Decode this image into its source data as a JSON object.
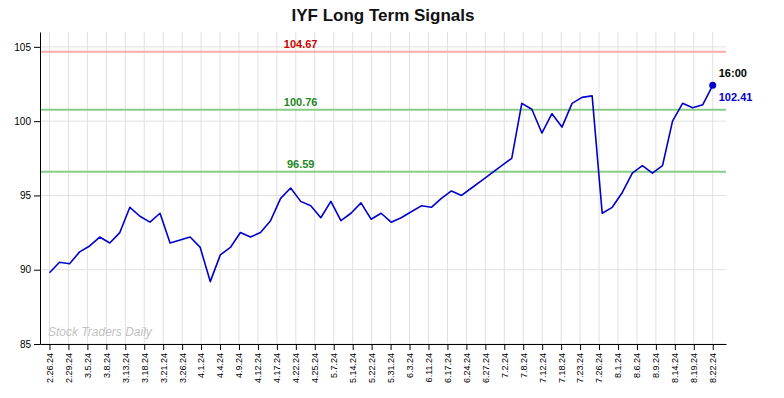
{
  "chart_data": {
    "type": "line",
    "title": "IYF Long Term Signals",
    "x": [
      0,
      0.5303,
      1.0606,
      1.5909,
      2.1212,
      2.6515,
      3.1818,
      3.7121,
      4.2424,
      4.7727,
      5.303,
      5.8333,
      6.3636,
      6.8939,
      7.4242,
      7.9545,
      8.4848,
      9.0152,
      9.5455,
      10.0758,
      10.6061,
      11.1364,
      11.6667,
      12.197,
      12.7273,
      13.2576,
      13.7879,
      14.3182,
      14.8485,
      15.3788,
      15.9091,
      16.4394,
      16.9697,
      17.5,
      18.0303,
      18.5606,
      19.0909,
      19.6212,
      20.1515,
      20.6818,
      21.2121,
      21.7424,
      22.2727,
      22.803,
      23.3333,
      23.8636,
      24.3939,
      24.9242,
      25.4545,
      25.9848,
      26.5152,
      27.0455,
      27.5758,
      28.1061,
      28.6364,
      29.1667,
      29.697,
      30.2273,
      30.7576,
      31.2879,
      31.8182,
      32.3485,
      32.8788,
      33.4091,
      33.9394,
      34.4697,
      35
    ],
    "values": [
      89.8,
      90.5,
      90.4,
      91.2,
      91.6,
      92.2,
      91.8,
      92.5,
      94.2,
      93.6,
      93.2,
      93.8,
      91.8,
      92.0,
      92.2,
      91.5,
      89.2,
      91.0,
      91.5,
      92.5,
      92.2,
      92.5,
      93.3,
      94.8,
      95.5,
      94.6,
      94.3,
      93.5,
      94.6,
      93.3,
      93.8,
      94.5,
      93.4,
      93.8,
      93.2,
      93.5,
      93.9,
      94.3,
      94.2,
      94.8,
      95.3,
      95.0,
      95.5,
      96.0,
      96.5,
      97.0,
      97.5,
      101.2,
      100.8,
      99.2,
      100.5,
      99.6,
      101.2,
      101.6,
      101.7,
      93.8,
      94.2,
      95.2,
      96.5,
      97.0,
      96.5,
      97.0,
      100.0,
      101.2,
      100.9,
      101.1,
      102.41
    ],
    "color": "#0000cc",
    "xlim": [
      -0.5,
      35.7
    ],
    "xticks": [
      {
        "value": 0,
        "label": "2.26.24"
      },
      {
        "value": 1,
        "label": "2.29.24"
      },
      {
        "value": 2,
        "label": "3.5.24"
      },
      {
        "value": 3,
        "label": "3.8.24"
      },
      {
        "value": 4,
        "label": "3.13.24"
      },
      {
        "value": 5,
        "label": "3.18.24"
      },
      {
        "value": 6,
        "label": "3.21.24"
      },
      {
        "value": 7,
        "label": "3.26.24"
      },
      {
        "value": 8,
        "label": "4.1.24"
      },
      {
        "value": 9,
        "label": "4.4.24"
      },
      {
        "value": 10,
        "label": "4.9.24"
      },
      {
        "value": 11,
        "label": "4.12.24"
      },
      {
        "value": 12,
        "label": "4.17.24"
      },
      {
        "value": 13,
        "label": "4.22.24"
      },
      {
        "value": 14,
        "label": "4.25.24"
      },
      {
        "value": 15,
        "label": "5.7.24"
      },
      {
        "value": 16,
        "label": "5.14.24"
      },
      {
        "value": 17,
        "label": "5.22.24"
      },
      {
        "value": 18,
        "label": "5.31.24"
      },
      {
        "value": 19,
        "label": "6.3.24"
      },
      {
        "value": 20,
        "label": "6.11.24"
      },
      {
        "value": 21,
        "label": "6.17.24"
      },
      {
        "value": 22,
        "label": "6.24.24"
      },
      {
        "value": 23,
        "label": "6.27.24"
      },
      {
        "value": 24,
        "label": "7.2.24"
      },
      {
        "value": 25,
        "label": "7.8.24"
      },
      {
        "value": 26,
        "label": "7.12.24"
      },
      {
        "value": 27,
        "label": "7.18.24"
      },
      {
        "value": 28,
        "label": "7.23.24"
      },
      {
        "value": 29,
        "label": "7.26.24"
      },
      {
        "value": 30,
        "label": "8.1.24"
      },
      {
        "value": 31,
        "label": "8.6.24"
      },
      {
        "value": 32,
        "label": "8.9.24"
      },
      {
        "value": 33,
        "label": "8.14.24"
      },
      {
        "value": 34,
        "label": "8.19.24"
      },
      {
        "value": 35,
        "label": "8.22.24"
      }
    ],
    "ylim": [
      85,
      106
    ],
    "yticks": [
      85,
      90,
      95,
      100,
      105
    ],
    "grid": true,
    "reference_lines": [
      {
        "value": 104.67,
        "label": "104.67",
        "color": "#ffaaaa",
        "label_color": "#cc0000"
      },
      {
        "value": 100.76,
        "label": "100.76",
        "color": "#88cc88",
        "label_color": "#228822"
      },
      {
        "value": 96.59,
        "label": "96.59",
        "color": "#88cc88",
        "label_color": "#228822"
      }
    ],
    "last_point": {
      "time_label": "16:00",
      "price_label": "102.41",
      "color": "#0000cc"
    },
    "watermark": {
      "text": "Stock Traders Daily",
      "color": "#bbbbbb"
    }
  }
}
